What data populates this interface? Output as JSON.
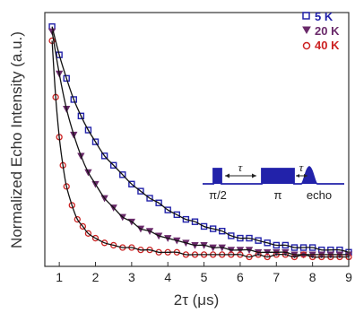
{
  "chart_data": {
    "type": "scatter",
    "title": "",
    "xlabel": "2τ (μs)",
    "ylabel": "Normalized Echo Intensity (a.u.)",
    "xlim": [
      0.6,
      9.0
    ],
    "ylim": [
      0.0,
      1.08
    ],
    "x_ticks": [
      "1",
      "2",
      "3",
      "4",
      "5",
      "6",
      "7",
      "8",
      "9"
    ],
    "y_ticks": [],
    "grid": false,
    "legend_position": "top-right",
    "series": [
      {
        "name": "5 K",
        "marker": "square",
        "color": "#2222aa",
        "x": [
          0.8,
          1.0,
          1.2,
          1.4,
          1.6,
          1.8,
          2.0,
          2.25,
          2.5,
          2.75,
          3.0,
          3.25,
          3.5,
          3.75,
          4.0,
          4.25,
          4.5,
          4.75,
          5.0,
          5.25,
          5.5,
          5.75,
          6.0,
          6.25,
          6.5,
          6.75,
          7.0,
          7.25,
          7.5,
          7.75,
          8.0,
          8.25,
          8.5,
          8.75,
          9.0
        ],
        "y": [
          1.02,
          0.9,
          0.8,
          0.71,
          0.64,
          0.58,
          0.53,
          0.47,
          0.43,
          0.39,
          0.35,
          0.32,
          0.29,
          0.27,
          0.24,
          0.22,
          0.2,
          0.19,
          0.17,
          0.16,
          0.15,
          0.13,
          0.12,
          0.12,
          0.11,
          0.1,
          0.09,
          0.09,
          0.08,
          0.08,
          0.08,
          0.07,
          0.07,
          0.07,
          0.06
        ]
      },
      {
        "name": "20 K",
        "marker": "triangle-down",
        "color": "#6a2a6a",
        "x": [
          0.8,
          1.0,
          1.2,
          1.4,
          1.6,
          1.8,
          2.0,
          2.25,
          2.5,
          2.75,
          3.0,
          3.25,
          3.5,
          3.75,
          4.0,
          4.25,
          4.5,
          4.75,
          5.0,
          5.25,
          5.5,
          5.75,
          6.0,
          6.25,
          6.5,
          6.75,
          7.0,
          7.25,
          7.5,
          7.75,
          8.0,
          8.25,
          8.5,
          8.75,
          9.0
        ],
        "y": [
          1.0,
          0.82,
          0.67,
          0.56,
          0.47,
          0.4,
          0.35,
          0.29,
          0.25,
          0.21,
          0.19,
          0.16,
          0.15,
          0.13,
          0.12,
          0.11,
          0.1,
          0.09,
          0.09,
          0.08,
          0.08,
          0.07,
          0.07,
          0.07,
          0.06,
          0.06,
          0.06,
          0.06,
          0.05,
          0.05,
          0.05,
          0.05,
          0.05,
          0.05,
          0.05
        ]
      },
      {
        "name": "40 K",
        "marker": "circle",
        "color": "#cc2222",
        "x": [
          0.8,
          0.9,
          1.0,
          1.1,
          1.2,
          1.35,
          1.5,
          1.65,
          1.8,
          2.0,
          2.25,
          2.5,
          2.75,
          3.0,
          3.25,
          3.5,
          3.75,
          4.0,
          4.25,
          4.5,
          4.75,
          5.0,
          5.25,
          5.5,
          5.75,
          6.0,
          6.25,
          6.5,
          6.75,
          7.0,
          7.25,
          7.5,
          7.75,
          8.0,
          8.25,
          8.5,
          8.75,
          9.0
        ],
        "y": [
          0.96,
          0.72,
          0.55,
          0.43,
          0.34,
          0.26,
          0.2,
          0.17,
          0.14,
          0.12,
          0.1,
          0.09,
          0.08,
          0.08,
          0.07,
          0.07,
          0.06,
          0.06,
          0.06,
          0.05,
          0.05,
          0.05,
          0.05,
          0.05,
          0.05,
          0.05,
          0.04,
          0.05,
          0.04,
          0.05,
          0.05,
          0.04,
          0.05,
          0.04,
          0.04,
          0.04,
          0.04,
          0.04
        ]
      }
    ],
    "inset": {
      "labels": [
        "π/2",
        "π",
        "echo"
      ],
      "tau_symbol": "τ"
    }
  }
}
